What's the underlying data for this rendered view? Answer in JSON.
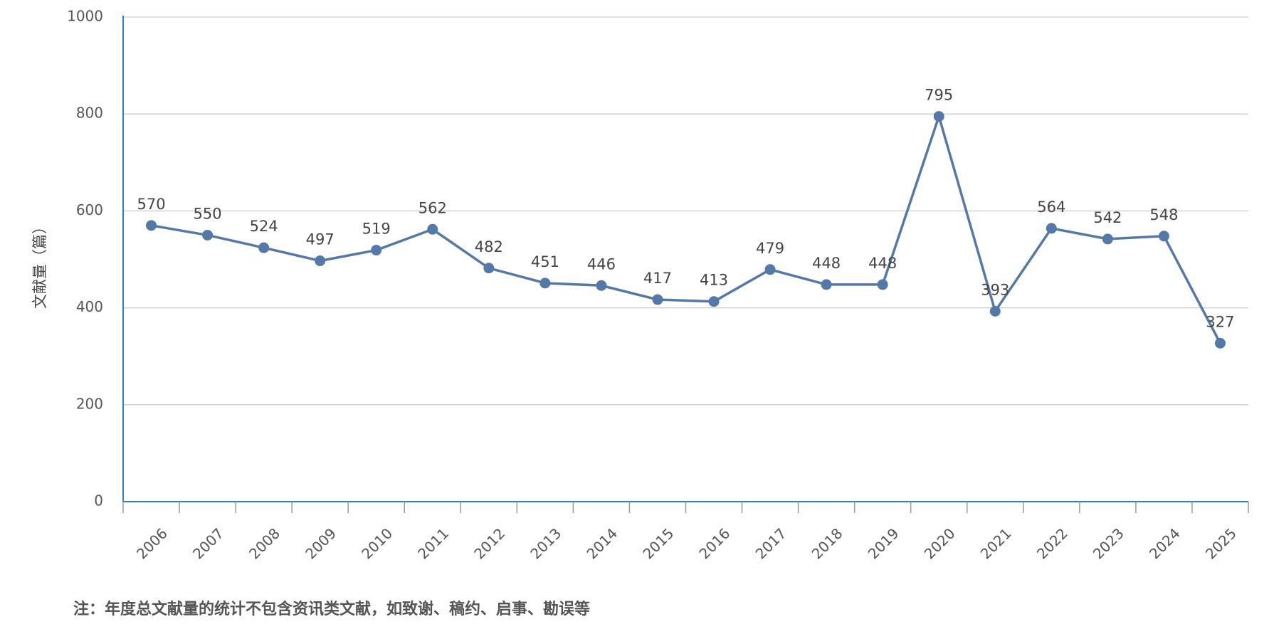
{
  "chart_data": {
    "type": "line",
    "y_label": "文献量（篇）",
    "note": "注：年度总文献量的统计不包含资讯类文献，如致谢、稿约、启事、勘误等",
    "categories": [
      "2006",
      "2007",
      "2008",
      "2009",
      "2010",
      "2011",
      "2012",
      "2013",
      "2014",
      "2015",
      "2016",
      "2017",
      "2018",
      "2019",
      "2020",
      "2021",
      "2022",
      "2023",
      "2024",
      "2025"
    ],
    "values": [
      570,
      550,
      524,
      497,
      519,
      562,
      482,
      451,
      446,
      417,
      413,
      479,
      448,
      448,
      795,
      393,
      564,
      542,
      548,
      327
    ],
    "color": "#5479a8",
    "ylim": [
      0,
      1000
    ],
    "yticks": [
      0,
      200,
      400,
      600,
      800,
      1000
    ],
    "grid": true
  }
}
